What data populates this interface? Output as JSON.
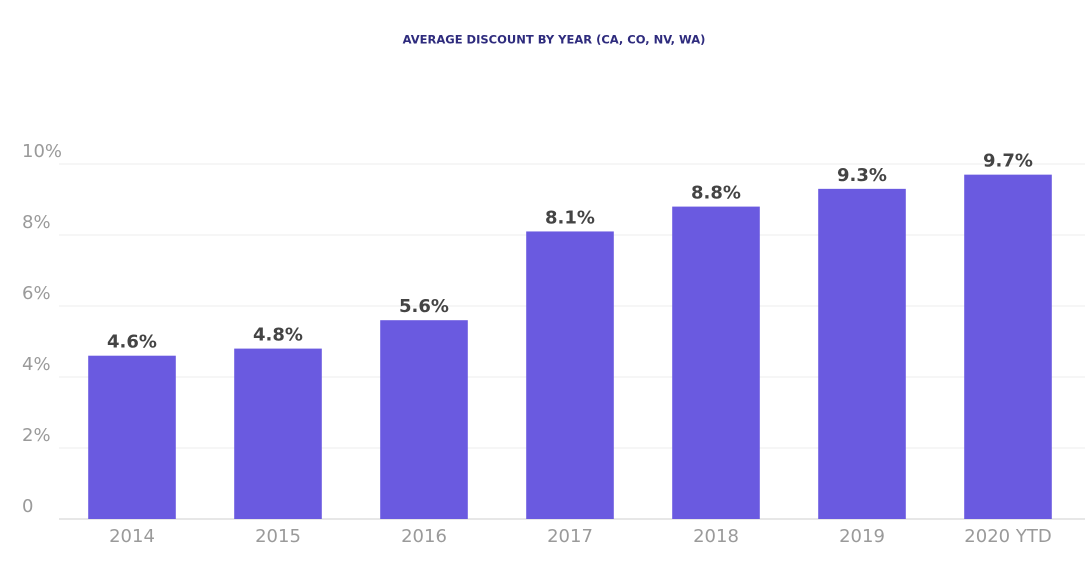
{
  "chart_data": {
    "type": "bar",
    "title": "AVERAGE DISCOUNT BY YEAR (CA, CO, NV, WA)",
    "categories": [
      "2014",
      "2015",
      "2016",
      "2017",
      "2018",
      "2019",
      "2020 YTD"
    ],
    "values": [
      4.6,
      4.8,
      5.6,
      8.1,
      8.8,
      9.3,
      9.7
    ],
    "value_labels": [
      "4.6%",
      "4.8%",
      "5.6%",
      "8.1%",
      "8.8%",
      "9.3%",
      "9.7%"
    ],
    "color": "#6a5ae0",
    "ylim": [
      0,
      10
    ],
    "yticks": [
      0,
      {
        "value": 2,
        "label": "2%"
      },
      {
        "value": 4,
        "label": "4%"
      },
      {
        "value": 6,
        "label": "6%"
      },
      {
        "value": 8,
        "label": "8%"
      },
      {
        "value": 10,
        "label": "10%"
      }
    ],
    "grid": true
  }
}
